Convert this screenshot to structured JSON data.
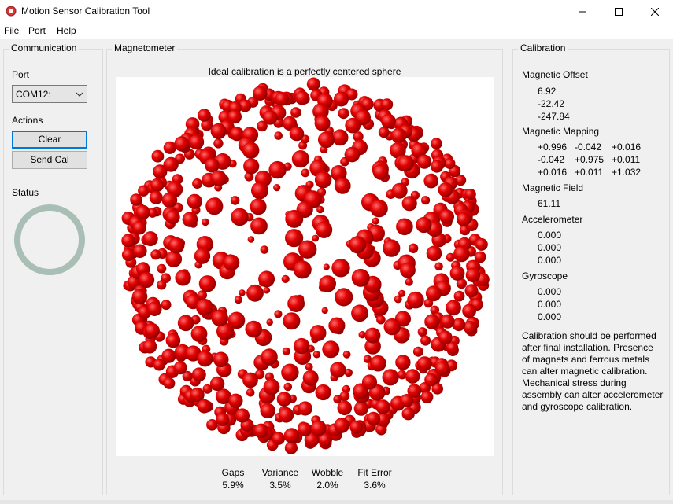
{
  "window": {
    "title": "Motion Sensor Calibration Tool"
  },
  "menu": [
    "File",
    "Port",
    "Help"
  ],
  "communication": {
    "group_label": "Communication",
    "port_label": "Port",
    "port_value": "COM12:",
    "actions_label": "Actions",
    "clear_label": "Clear",
    "send_cal_label": "Send Cal",
    "status_label": "Status"
  },
  "magnetometer": {
    "group_label": "Magnetometer",
    "plot_title": "Ideal calibration is a perfectly centered sphere",
    "stats": [
      {
        "label": "Gaps",
        "value": "5.9%"
      },
      {
        "label": "Variance",
        "value": "3.5%"
      },
      {
        "label": "Wobble",
        "value": "2.0%"
      },
      {
        "label": "Fit Error",
        "value": "3.6%"
      }
    ]
  },
  "calibration": {
    "group_label": "Calibration",
    "magnetic_offset_label": "Magnetic Offset",
    "magnetic_offset": [
      "6.92",
      "-22.42",
      "-247.84"
    ],
    "magnetic_mapping_label": "Magnetic Mapping",
    "magnetic_mapping": [
      [
        "+0.996",
        "-0.042",
        "+0.016"
      ],
      [
        "-0.042",
        "+0.975",
        "+0.011"
      ],
      [
        "+0.016",
        "+0.011",
        "+1.032"
      ]
    ],
    "magnetic_field_label": "Magnetic Field",
    "magnetic_field": "61.11",
    "accelerometer_label": "Accelerometer",
    "accelerometer": [
      "0.000",
      "0.000",
      "0.000"
    ],
    "gyroscope_label": "Gyroscope",
    "gyroscope": [
      "0.000",
      "0.000",
      "0.000"
    ],
    "note": "Calibration should be performed after final installation.  Presence of magnets and ferrous metals can alter magnetic calibration. Mechanical stress during assembly can alter accelerometer and gyroscope calibration."
  },
  "colors": {
    "point": "#dd0000",
    "status_ring": "#a9bfb5",
    "focus": "#0078d7"
  },
  "icons": [
    "app-icon",
    "minimize-icon",
    "maximize-icon",
    "close-icon",
    "chevron-down-icon"
  ]
}
